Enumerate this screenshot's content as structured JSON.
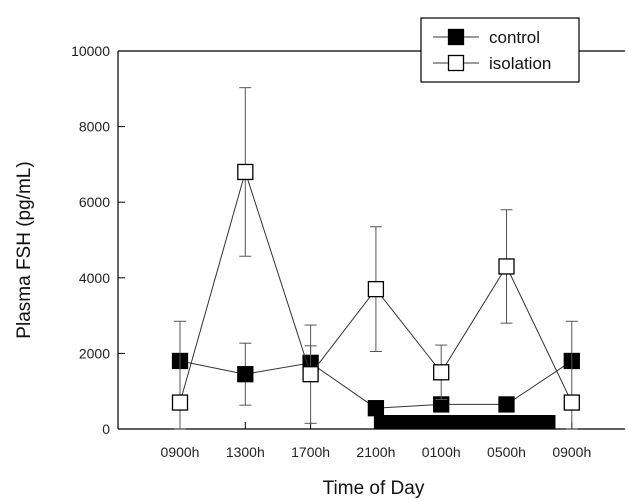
{
  "chart_data": {
    "type": "line",
    "categories": [
      "0900h",
      "1300h",
      "1700h",
      "2100h",
      "0100h",
      "0500h",
      "0900h"
    ],
    "xlabel": "Time of Day",
    "ylabel": "Plasma FSH (pg/mL)",
    "ylim": [
      0,
      10000
    ],
    "yticks": [
      0,
      2000,
      4000,
      6000,
      8000,
      10000
    ],
    "grid": false,
    "legend_position": "top-right",
    "series": [
      {
        "name": "control",
        "marker": "filled-square",
        "color": "#000000",
        "values": [
          1800,
          1450,
          1750,
          550,
          650,
          650,
          1800
        ],
        "error": [
          null,
          820,
          450,
          null,
          null,
          null,
          null
        ]
      },
      {
        "name": "isolation",
        "marker": "open-square",
        "color": "#000000",
        "values": [
          700,
          6800,
          1450,
          3700,
          1500,
          4300,
          700
        ],
        "error": [
          2150,
          2230,
          1300,
          1650,
          720,
          1500,
          2150
        ]
      }
    ],
    "dark_period_bar": {
      "from_category_index": 3,
      "to_category_index": 5.75,
      "color": "#000000"
    }
  }
}
